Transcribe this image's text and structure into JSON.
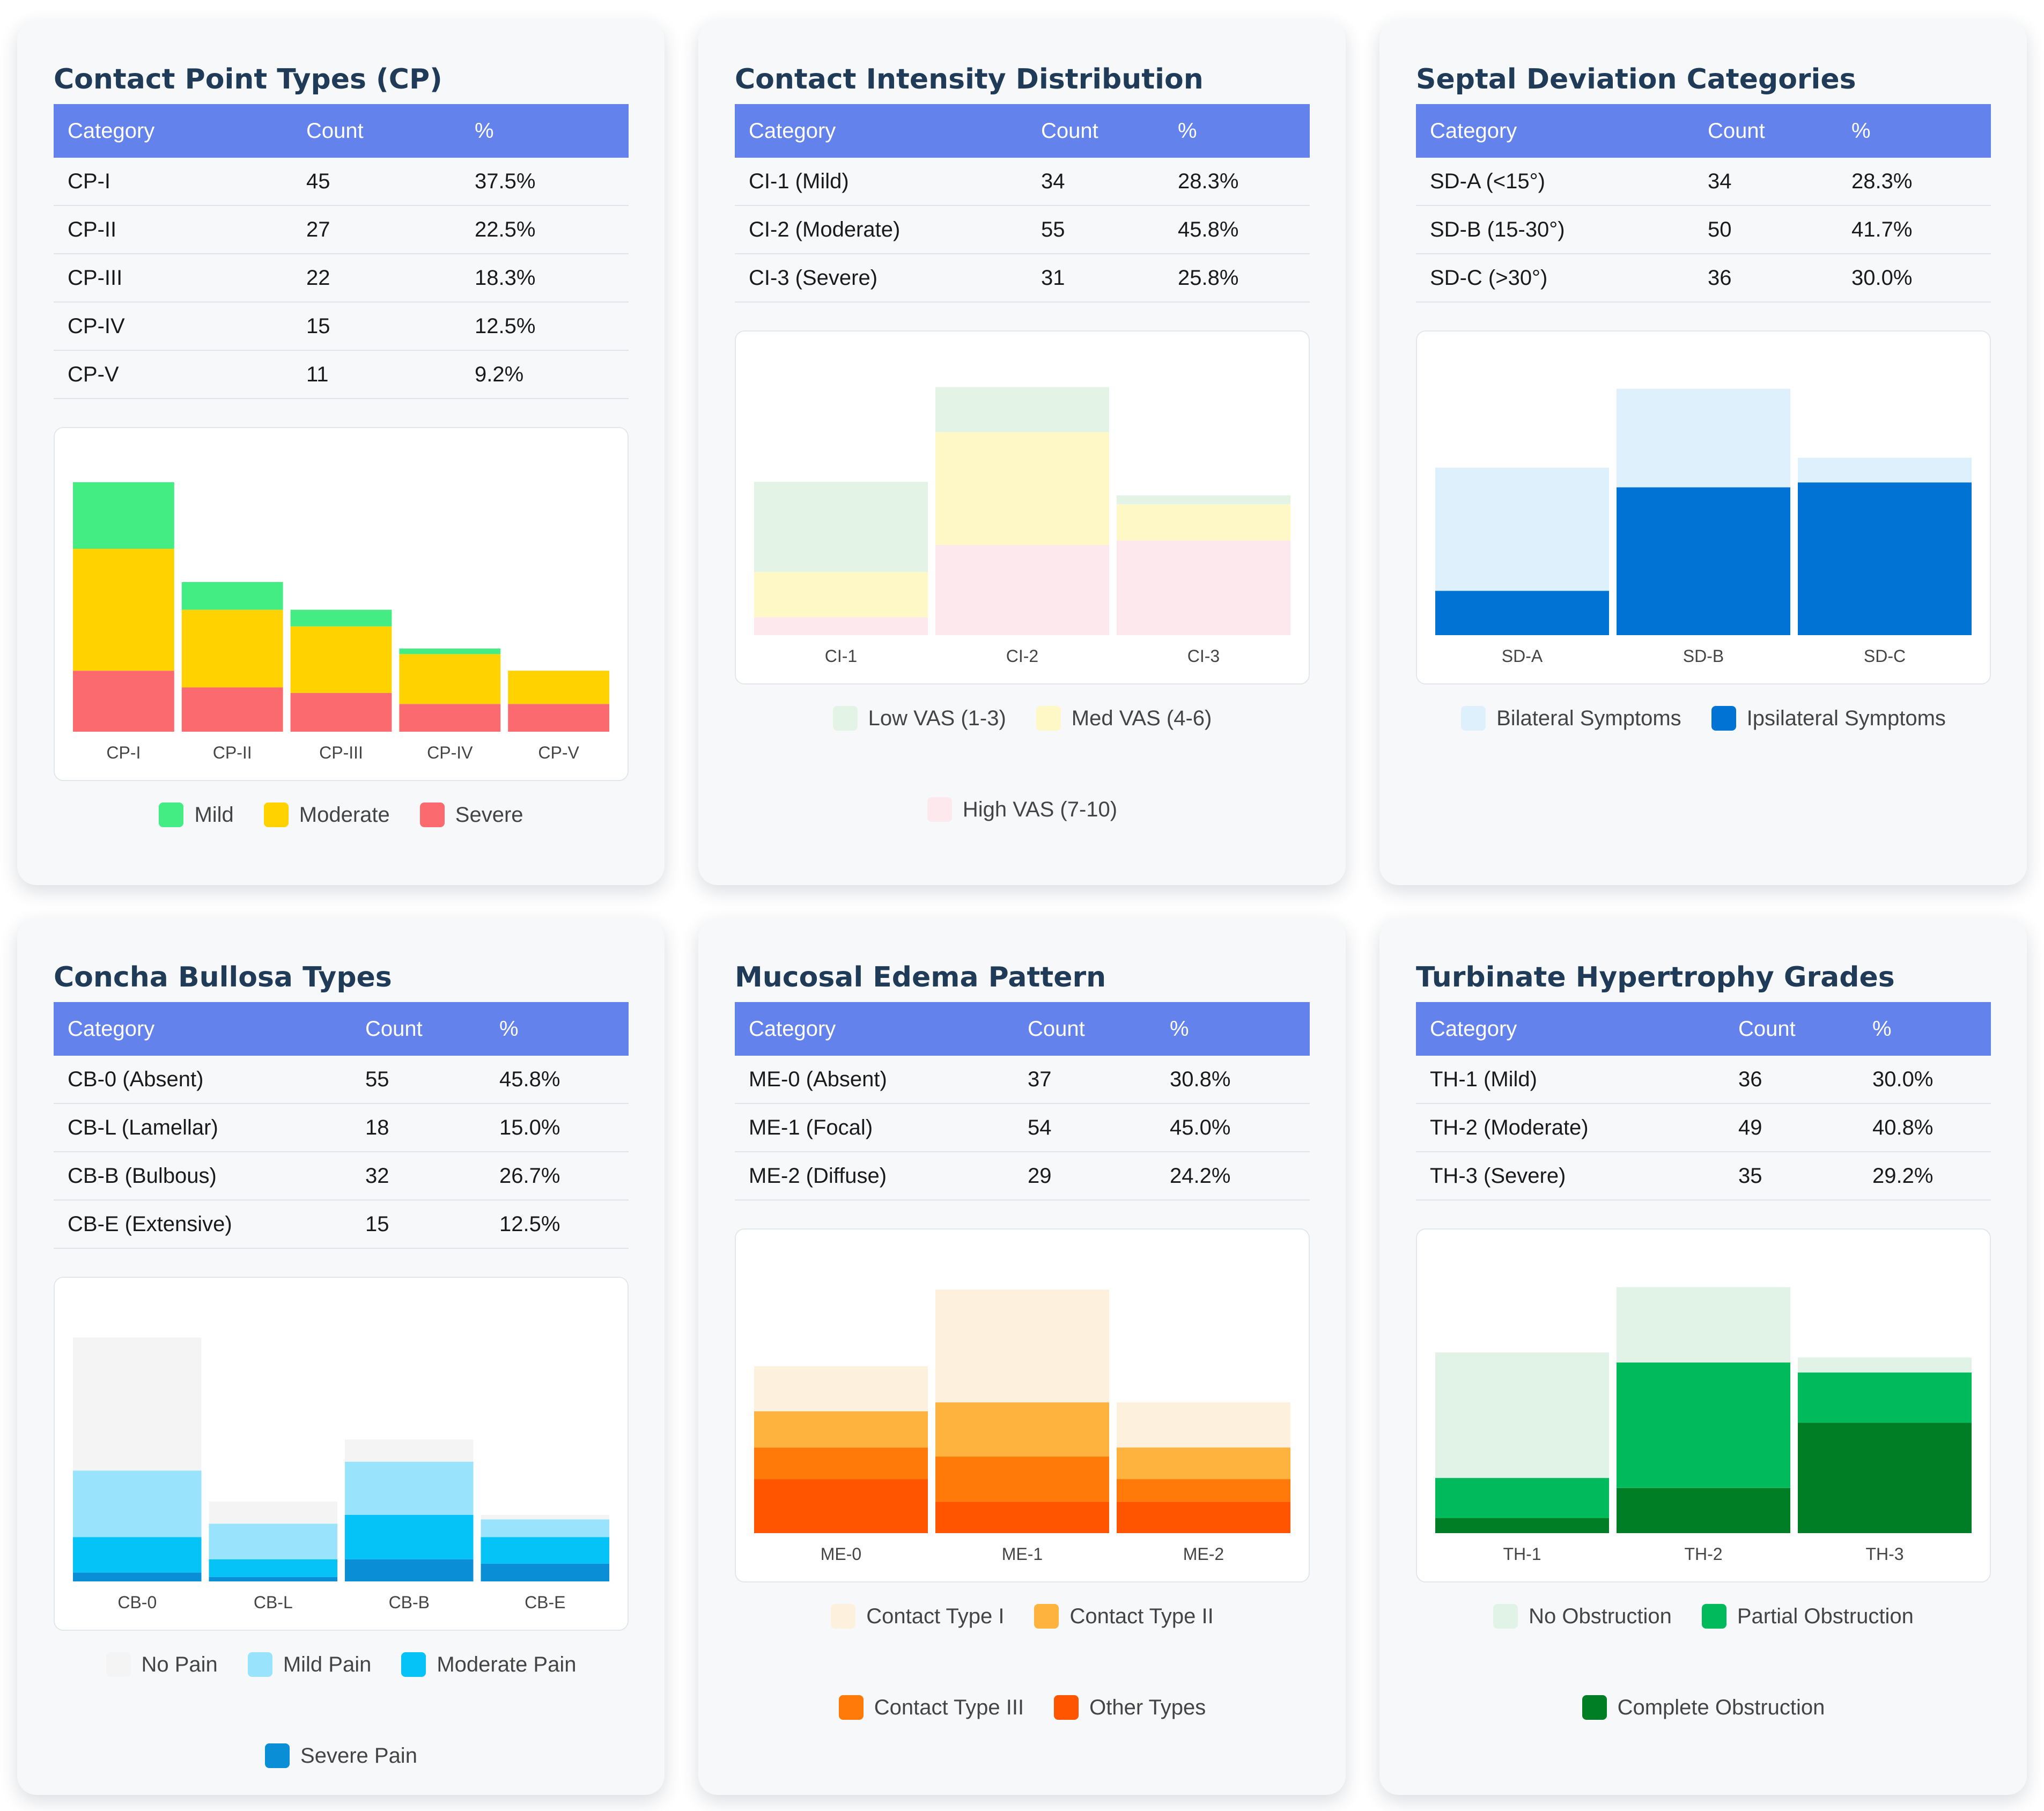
{
  "table_headers": {
    "category": "Category",
    "count": "Count",
    "percent": "%"
  },
  "chart_data": [
    {
      "id": "cp",
      "type": "bar",
      "stacked": true,
      "title": "Contact Point Types (CP)",
      "table": [
        [
          "CP-I",
          "45",
          "37.5%"
        ],
        [
          "CP-II",
          "27",
          "22.5%"
        ],
        [
          "CP-III",
          "22",
          "18.3%"
        ],
        [
          "CP-IV",
          "15",
          "12.5%"
        ],
        [
          "CP-V",
          "11",
          "9.2%"
        ]
      ],
      "categories": [
        "CP-I",
        "CP-II",
        "CP-III",
        "CP-IV",
        "CP-V"
      ],
      "series": [
        {
          "name": "Severe",
          "color": "#fa6a6e",
          "values": [
            11,
            8,
            7,
            5,
            5
          ]
        },
        {
          "name": "Moderate",
          "color": "#ffd200",
          "values": [
            22,
            14,
            12,
            9,
            6
          ]
        },
        {
          "name": "Mild",
          "color": "#44ec84",
          "values": [
            12,
            5,
            3,
            1,
            0
          ]
        }
      ],
      "ylim": [
        0,
        48
      ],
      "legend": [
        "Mild",
        "Moderate",
        "Severe"
      ]
    },
    {
      "id": "ci",
      "type": "bar",
      "stacked": true,
      "title": "Contact Intensity Distribution",
      "table": [
        [
          "CI-1 (Mild)",
          "34",
          "28.3%"
        ],
        [
          "CI-2 (Moderate)",
          "55",
          "45.8%"
        ],
        [
          "CI-3 (Severe)",
          "31",
          "25.8%"
        ]
      ],
      "categories": [
        "CI-1",
        "CI-2",
        "CI-3"
      ],
      "series": [
        {
          "name": "High VAS (7-10)",
          "color": "#fde8ed",
          "values": [
            4,
            20,
            21
          ]
        },
        {
          "name": "Med VAS (4-6)",
          "color": "#fef8c6",
          "values": [
            10,
            25,
            8
          ]
        },
        {
          "name": "Low VAS (1-3)",
          "color": "#e3f4e7",
          "values": [
            20,
            10,
            2
          ]
        }
      ],
      "ylim": [
        0,
        59
      ],
      "legend": [
        "Low VAS (1-3)",
        "Med VAS (4-6)",
        "High VAS (7-10)"
      ]
    },
    {
      "id": "sd",
      "type": "bar",
      "stacked": true,
      "title": "Septal Deviation Categories",
      "table": [
        [
          "SD-A (<15°)",
          "34",
          "28.3%"
        ],
        [
          "SD-B (15-30°)",
          "50",
          "41.7%"
        ],
        [
          "SD-C (>30°)",
          "36",
          "30.0%"
        ]
      ],
      "categories": [
        "SD-A",
        "SD-B",
        "SD-C"
      ],
      "series": [
        {
          "name": "Ipsilateral Symptoms",
          "color": "#0073d4",
          "values": [
            9,
            30,
            31
          ]
        },
        {
          "name": "Bilateral Symptoms",
          "color": "#def0fc",
          "values": [
            25,
            20,
            5
          ]
        }
      ],
      "ylim": [
        0,
        54
      ],
      "legend": [
        "Bilateral Symptoms",
        "Ipsilateral Symptoms"
      ]
    },
    {
      "id": "cb",
      "type": "bar",
      "stacked": true,
      "title": "Concha Bullosa Types",
      "table": [
        [
          "CB-0 (Absent)",
          "55",
          "45.8%"
        ],
        [
          "CB-L (Lamellar)",
          "18",
          "15.0%"
        ],
        [
          "CB-B (Bulbous)",
          "32",
          "26.7%"
        ],
        [
          "CB-E (Extensive)",
          "15",
          "12.5%"
        ]
      ],
      "categories": [
        "CB-0",
        "CB-L",
        "CB-B",
        "CB-E"
      ],
      "series": [
        {
          "name": "Severe Pain",
          "color": "#0a8fd7",
          "values": [
            2,
            1,
            5,
            4
          ]
        },
        {
          "name": "Moderate Pain",
          "color": "#05c3f7",
          "values": [
            8,
            4,
            10,
            6
          ]
        },
        {
          "name": "Mild Pain",
          "color": "#9ae3fc",
          "values": [
            15,
            8,
            12,
            4
          ]
        },
        {
          "name": "No Pain",
          "color": "#f4f4f4",
          "values": [
            30,
            5,
            5,
            1
          ]
        }
      ],
      "ylim": [
        0,
        60
      ],
      "legend": [
        "No Pain",
        "Mild Pain",
        "Moderate Pain",
        "Severe Pain"
      ]
    },
    {
      "id": "me",
      "type": "bar",
      "stacked": true,
      "title": "Mucosal Edema Pattern",
      "table": [
        [
          "ME-0 (Absent)",
          "37",
          "30.8%"
        ],
        [
          "ME-1 (Focal)",
          "54",
          "45.0%"
        ],
        [
          "ME-2 (Diffuse)",
          "29",
          "24.2%"
        ]
      ],
      "categories": [
        "ME-0",
        "ME-1",
        "ME-2"
      ],
      "series": [
        {
          "name": "Other Types",
          "color": "#ff5500",
          "values": [
            12,
            7,
            7
          ]
        },
        {
          "name": "Contact Type III",
          "color": "#ff7a08",
          "values": [
            7,
            10,
            5
          ]
        },
        {
          "name": "Contact Type II",
          "color": "#fdb33d",
          "values": [
            8,
            12,
            7
          ]
        },
        {
          "name": "Contact Type I",
          "color": "#fdf0dd",
          "values": [
            10,
            25,
            10
          ]
        }
      ],
      "ylim": [
        0,
        59
      ],
      "legend": [
        "Contact Type I",
        "Contact Type II",
        "Contact Type III",
        "Other Types"
      ]
    },
    {
      "id": "th",
      "type": "bar",
      "stacked": true,
      "title": "Turbinate Hypertrophy Grades",
      "table": [
        [
          "TH-1 (Mild)",
          "36",
          "30.0%"
        ],
        [
          "TH-2 (Moderate)",
          "49",
          "40.8%"
        ],
        [
          "TH-3 (Severe)",
          "35",
          "29.2%"
        ]
      ],
      "categories": [
        "TH-1",
        "TH-2",
        "TH-3"
      ],
      "series": [
        {
          "name": "Complete Obstruction",
          "color": "#007e25",
          "values": [
            3,
            9,
            22
          ]
        },
        {
          "name": "Partial Obstruction",
          "color": "#00ba5c",
          "values": [
            8,
            25,
            10
          ]
        },
        {
          "name": "No Obstruction",
          "color": "#e1f3e6",
          "values": [
            25,
            15,
            3
          ]
        }
      ],
      "ylim": [
        0,
        53
      ],
      "legend": [
        "No Obstruction",
        "Partial Obstruction",
        "Complete Obstruction"
      ]
    }
  ]
}
